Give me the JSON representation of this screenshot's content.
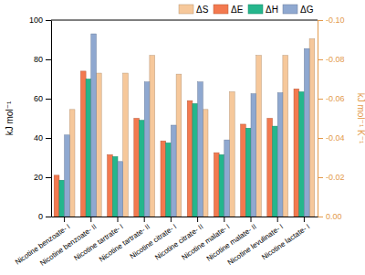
{
  "chart_data": {
    "type": "bar",
    "categories": [
      "Nicotine benzoate- I",
      "Nicotine benzoate- II",
      "Nicotine tartrate- I",
      "Nicotine tartrate- II",
      "Nicotine citrate- I",
      "Nicotine citrate- II",
      "Nicotine malate- I",
      "Nicotine malate- II",
      "Nicotine levulinate- I",
      "Nicotine lactate- I"
    ],
    "series": [
      {
        "name": "ΔS",
        "color": "#f6c89b",
        "axis": "y2",
        "values": [
          -0.0545,
          -0.073,
          -0.073,
          -0.082,
          -0.0725,
          -0.0545,
          -0.0635,
          -0.082,
          -0.082,
          -0.0905
        ]
      },
      {
        "name": "ΔE",
        "color": "#f3794f",
        "values": [
          21,
          74,
          31.5,
          50,
          38.5,
          59,
          32.5,
          47,
          50,
          65
        ]
      },
      {
        "name": "ΔH",
        "color": "#25b68c",
        "values": [
          18.5,
          70,
          30.5,
          49,
          37.5,
          57.5,
          31.5,
          45,
          46,
          63.5
        ]
      },
      {
        "name": "ΔG",
        "color": "#8fa8d0",
        "values": [
          41.5,
          93,
          28,
          68.5,
          46.5,
          68.5,
          39,
          62.5,
          63,
          85.5
        ]
      }
    ],
    "y_label": "kJ mol⁻¹",
    "y2_label": "kJ mol⁻¹ K⁻¹",
    "ylim": [
      0,
      100
    ],
    "yticks": [
      0,
      20,
      40,
      60,
      80,
      100
    ],
    "y2lim": [
      0,
      -0.1
    ],
    "y2ticks": [
      {
        "value": 0,
        "label": "0.00"
      },
      {
        "value": -0.02,
        "label": "-0.02"
      },
      {
        "value": -0.04,
        "label": "-0.04"
      },
      {
        "value": -0.06,
        "label": "-0.06"
      },
      {
        "value": -0.08,
        "label": "-0.08"
      },
      {
        "value": -0.1,
        "label": "-0.10"
      }
    ],
    "legend": "top-right"
  }
}
